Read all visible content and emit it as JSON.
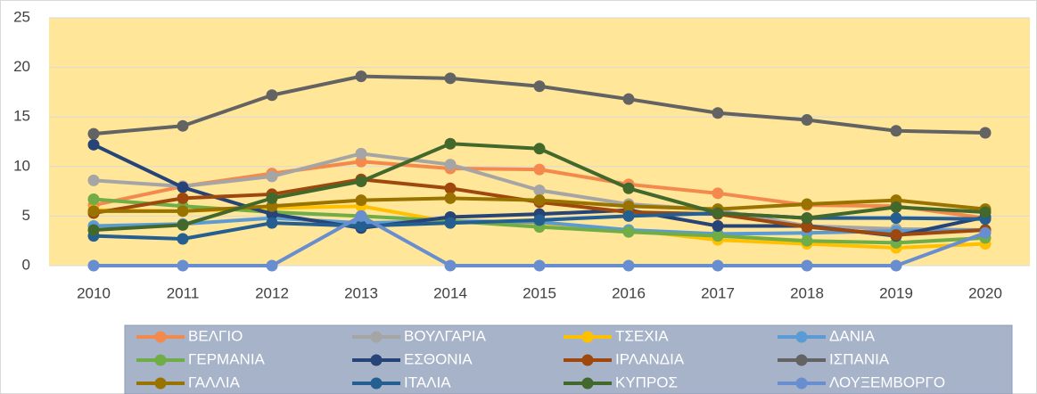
{
  "chart_data": {
    "type": "line",
    "categories": [
      "2010",
      "2011",
      "2012",
      "2013",
      "2014",
      "2015",
      "2016",
      "2017",
      "2018",
      "2019",
      "2020"
    ],
    "ylim": [
      0,
      25
    ],
    "yticks": [
      0,
      5,
      10,
      15,
      20,
      25
    ],
    "grid": true,
    "legend": "bottom",
    "series": [
      {
        "name": "ΒΕΛΓΙΟ",
        "color": "#f4894e",
        "values": [
          6.1,
          8.0,
          9.3,
          10.5,
          9.8,
          9.7,
          8.2,
          7.3,
          6.1,
          6.0,
          4.8
        ]
      },
      {
        "name": "ΒΟΥΛΓΑΡΙΑ",
        "color": "#a5a5a5",
        "values": [
          8.6,
          8.0,
          9.0,
          11.3,
          10.2,
          7.6,
          6.2,
          5.6,
          4.0,
          3.7,
          3.6
        ]
      },
      {
        "name": "ΤΣΕΧΙΑ",
        "color": "#ffc000",
        "values": [
          5.6,
          5.5,
          5.8,
          6.0,
          4.4,
          4.3,
          3.6,
          2.6,
          2.2,
          1.8,
          2.2
        ]
      },
      {
        "name": "ΔΑΝΙΑ",
        "color": "#5b9bd5",
        "values": [
          4.0,
          4.2,
          4.8,
          4.3,
          4.5,
          4.4,
          3.6,
          3.2,
          3.3,
          3.5,
          3.6
        ]
      },
      {
        "name": "ΓΕΡΜΑΝΙΑ",
        "color": "#70ad47",
        "values": [
          6.7,
          6.0,
          5.4,
          5.0,
          4.5,
          3.9,
          3.4,
          3.0,
          2.5,
          2.3,
          2.8
        ]
      },
      {
        "name": "ΕΣΘΟΝΙΑ",
        "color": "#264478",
        "values": [
          12.2,
          7.9,
          5.2,
          3.8,
          4.9,
          5.2,
          5.6,
          4.0,
          4.0,
          3.0,
          4.9
        ]
      },
      {
        "name": "ΙΡΛΑΝΔΙΑ",
        "color": "#9e480e",
        "values": [
          5.3,
          6.8,
          7.2,
          8.7,
          7.8,
          6.4,
          5.4,
          5.2,
          3.9,
          3.1,
          3.6
        ]
      },
      {
        "name": "ΙΣΠΑΝΙΑ",
        "color": "#636363",
        "values": [
          13.3,
          14.1,
          17.2,
          19.1,
          18.9,
          18.1,
          16.8,
          15.4,
          14.7,
          13.6,
          13.4
        ]
      },
      {
        "name": "ΓΑΛΛΙΑ",
        "color": "#997300",
        "values": [
          5.5,
          5.5,
          6.0,
          6.6,
          6.8,
          6.6,
          6.0,
          5.7,
          6.2,
          6.6,
          5.7
        ]
      },
      {
        "name": "ΙΤΑΛΙΑ",
        "color": "#255e91",
        "values": [
          3.0,
          2.7,
          4.3,
          4.0,
          4.3,
          4.6,
          5.0,
          5.3,
          4.8,
          4.8,
          4.7
        ]
      },
      {
        "name": "ΚΥΠΡΟΣ",
        "color": "#43682b",
        "values": [
          3.6,
          4.1,
          6.8,
          8.5,
          12.3,
          11.8,
          7.8,
          5.3,
          4.8,
          5.9,
          5.4
        ]
      },
      {
        "name": "ΛΟΥΞΕΜΒΟΡΓΟ",
        "color": "#698ed0",
        "values": [
          0,
          0,
          0,
          5.0,
          0,
          0,
          0,
          0,
          0,
          0,
          3.3
        ]
      }
    ]
  }
}
